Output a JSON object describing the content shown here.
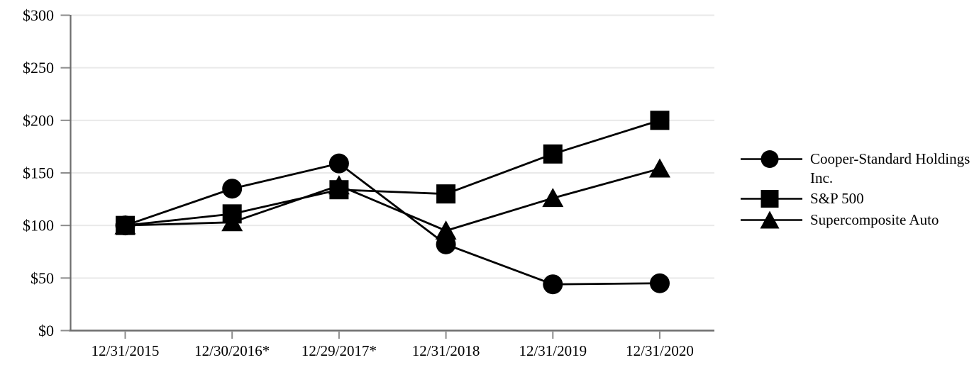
{
  "chart_data": {
    "type": "line",
    "title": "",
    "xlabel": "",
    "ylabel": "",
    "categories": [
      "12/31/2015",
      "12/30/2016*",
      "12/29/2017*",
      "12/31/2018",
      "12/31/2019",
      "12/31/2020"
    ],
    "series": [
      {
        "name": "Cooper-Standard Holdings Inc.",
        "marker": "circle",
        "values": [
          100,
          135,
          159,
          82,
          44,
          45
        ]
      },
      {
        "name": "S&P 500",
        "marker": "square",
        "values": [
          100,
          111,
          134,
          130,
          168,
          200
        ]
      },
      {
        "name": "Supercomposite Auto",
        "marker": "triangle",
        "values": [
          100,
          103,
          138,
          95,
          126,
          154
        ]
      }
    ],
    "draw_order": [
      2,
      0,
      1
    ],
    "ylim": [
      0,
      300
    ],
    "y_tick_step": 50,
    "y_tick_labels": [
      "$0",
      "$50",
      "$100",
      "$150",
      "$200",
      "$250",
      "$300"
    ],
    "grid": true,
    "legend_position": "right",
    "colors": {
      "series": "#000000",
      "grid": "#e9e9e9",
      "axis": "#6e6e6e",
      "tick": "#8c8c8c",
      "text": "#000000"
    }
  }
}
